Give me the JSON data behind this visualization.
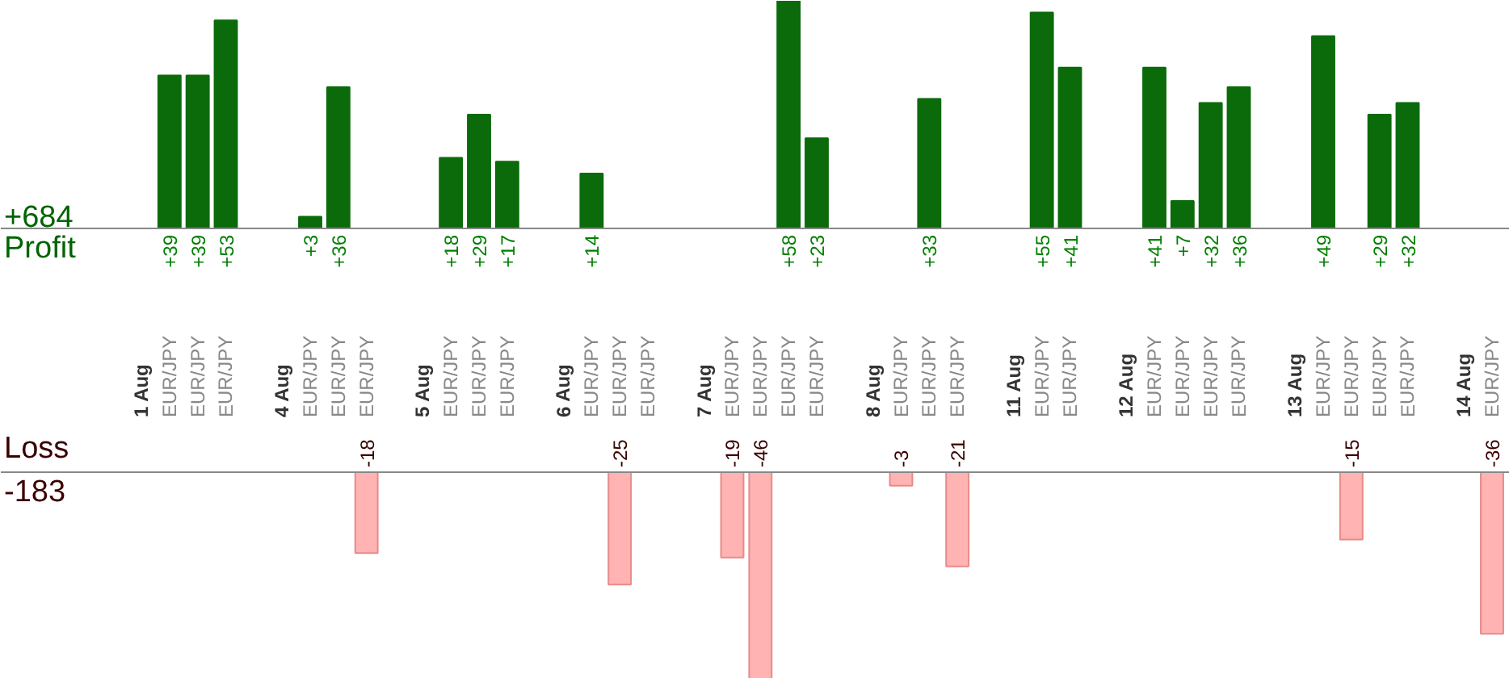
{
  "chart_data": [
    {
      "type": "bar",
      "categories": [
        "1 Aug",
        "EUR/JPY",
        "EUR/JPY",
        "EUR/JPY",
        null,
        "4 Aug",
        "EUR/JPY",
        "EUR/JPY",
        "EUR/JPY",
        null,
        "5 Aug",
        "EUR/JPY",
        "EUR/JPY",
        "EUR/JPY",
        null,
        "6 Aug",
        "EUR/JPY",
        "EUR/JPY",
        "EUR/JPY",
        null,
        "7 Aug",
        "EUR/JPY",
        "EUR/JPY",
        "EUR/JPY",
        "EUR/JPY",
        null,
        "8 Aug",
        "EUR/JPY",
        "EUR/JPY",
        "EUR/JPY",
        null,
        "11 Aug",
        "EUR/JPY",
        "EUR/JPY",
        null,
        "12 Aug",
        "EUR/JPY",
        "EUR/JPY",
        "EUR/JPY",
        "EUR/JPY",
        null,
        "13 Aug",
        "EUR/JPY",
        "EUR/JPY",
        "EUR/JPY",
        "EUR/JPY",
        null,
        "14 Aug",
        "EUR/JPY"
      ],
      "series": [
        {
          "name": "Profit",
          "color": "#0b6b0b",
          "values": [
            null,
            39,
            39,
            53,
            null,
            null,
            3,
            36,
            null,
            null,
            null,
            18,
            29,
            17,
            null,
            null,
            14,
            null,
            null,
            null,
            null,
            null,
            null,
            58,
            23,
            null,
            null,
            null,
            33,
            null,
            null,
            null,
            55,
            41,
            null,
            null,
            41,
            7,
            32,
            36,
            null,
            null,
            49,
            null,
            29,
            32,
            null,
            null,
            null
          ],
          "value_labels": [
            null,
            "+39",
            "+39",
            "+53",
            null,
            null,
            "+3",
            "+36",
            null,
            null,
            null,
            "+18",
            "+29",
            "+17",
            null,
            null,
            "+14",
            null,
            null,
            null,
            null,
            null,
            null,
            "+58",
            "+23",
            null,
            null,
            null,
            "+33",
            null,
            null,
            null,
            "+55",
            "+41",
            null,
            null,
            "+41",
            "+7",
            "+32",
            "+36",
            null,
            null,
            "+49",
            null,
            "+29",
            "+32",
            null,
            null,
            null
          ]
        }
      ],
      "annotations": [
        "+684"
      ]
    },
    {
      "type": "bar",
      "tick_labels": false,
      "categories": [
        "1 Aug",
        "EUR/JPY",
        "EUR/JPY",
        "EUR/JPY",
        null,
        "4 Aug",
        "EUR/JPY",
        "EUR/JPY",
        "EUR/JPY",
        null,
        "5 Aug",
        "EUR/JPY",
        "EUR/JPY",
        "EUR/JPY",
        null,
        "6 Aug",
        "EUR/JPY",
        "EUR/JPY",
        "EUR/JPY",
        null,
        "7 Aug",
        "EUR/JPY",
        "EUR/JPY",
        "EUR/JPY",
        "EUR/JPY",
        null,
        "8 Aug",
        "EUR/JPY",
        "EUR/JPY",
        "EUR/JPY",
        null,
        "11 Aug",
        "EUR/JPY",
        "EUR/JPY",
        null,
        "12 Aug",
        "EUR/JPY",
        "EUR/JPY",
        "EUR/JPY",
        "EUR/JPY",
        null,
        "13 Aug",
        "EUR/JPY",
        "EUR/JPY",
        "EUR/JPY",
        "EUR/JPY",
        null,
        "14 Aug",
        "EUR/JPY"
      ],
      "series": [
        {
          "name": "Loss",
          "color": "#ffb3b3",
          "values": [
            null,
            null,
            null,
            null,
            null,
            null,
            null,
            null,
            -18,
            null,
            null,
            null,
            null,
            null,
            null,
            null,
            null,
            -25,
            null,
            null,
            null,
            -19,
            -46,
            null,
            null,
            null,
            null,
            -3,
            null,
            -21,
            null,
            null,
            null,
            null,
            null,
            null,
            null,
            null,
            null,
            null,
            null,
            null,
            null,
            -15,
            null,
            null,
            null,
            null,
            -36
          ],
          "value_labels": [
            null,
            null,
            null,
            null,
            null,
            null,
            null,
            null,
            "-18",
            null,
            null,
            null,
            null,
            null,
            null,
            null,
            null,
            "-25",
            null,
            null,
            null,
            "-19",
            "-46",
            null,
            null,
            null,
            null,
            "-3",
            null,
            "-21",
            null,
            null,
            null,
            null,
            null,
            null,
            null,
            null,
            null,
            null,
            null,
            null,
            null,
            "-15",
            null,
            null,
            null,
            null,
            "-36"
          ]
        }
      ],
      "annotations": [
        "-183"
      ]
    }
  ]
}
